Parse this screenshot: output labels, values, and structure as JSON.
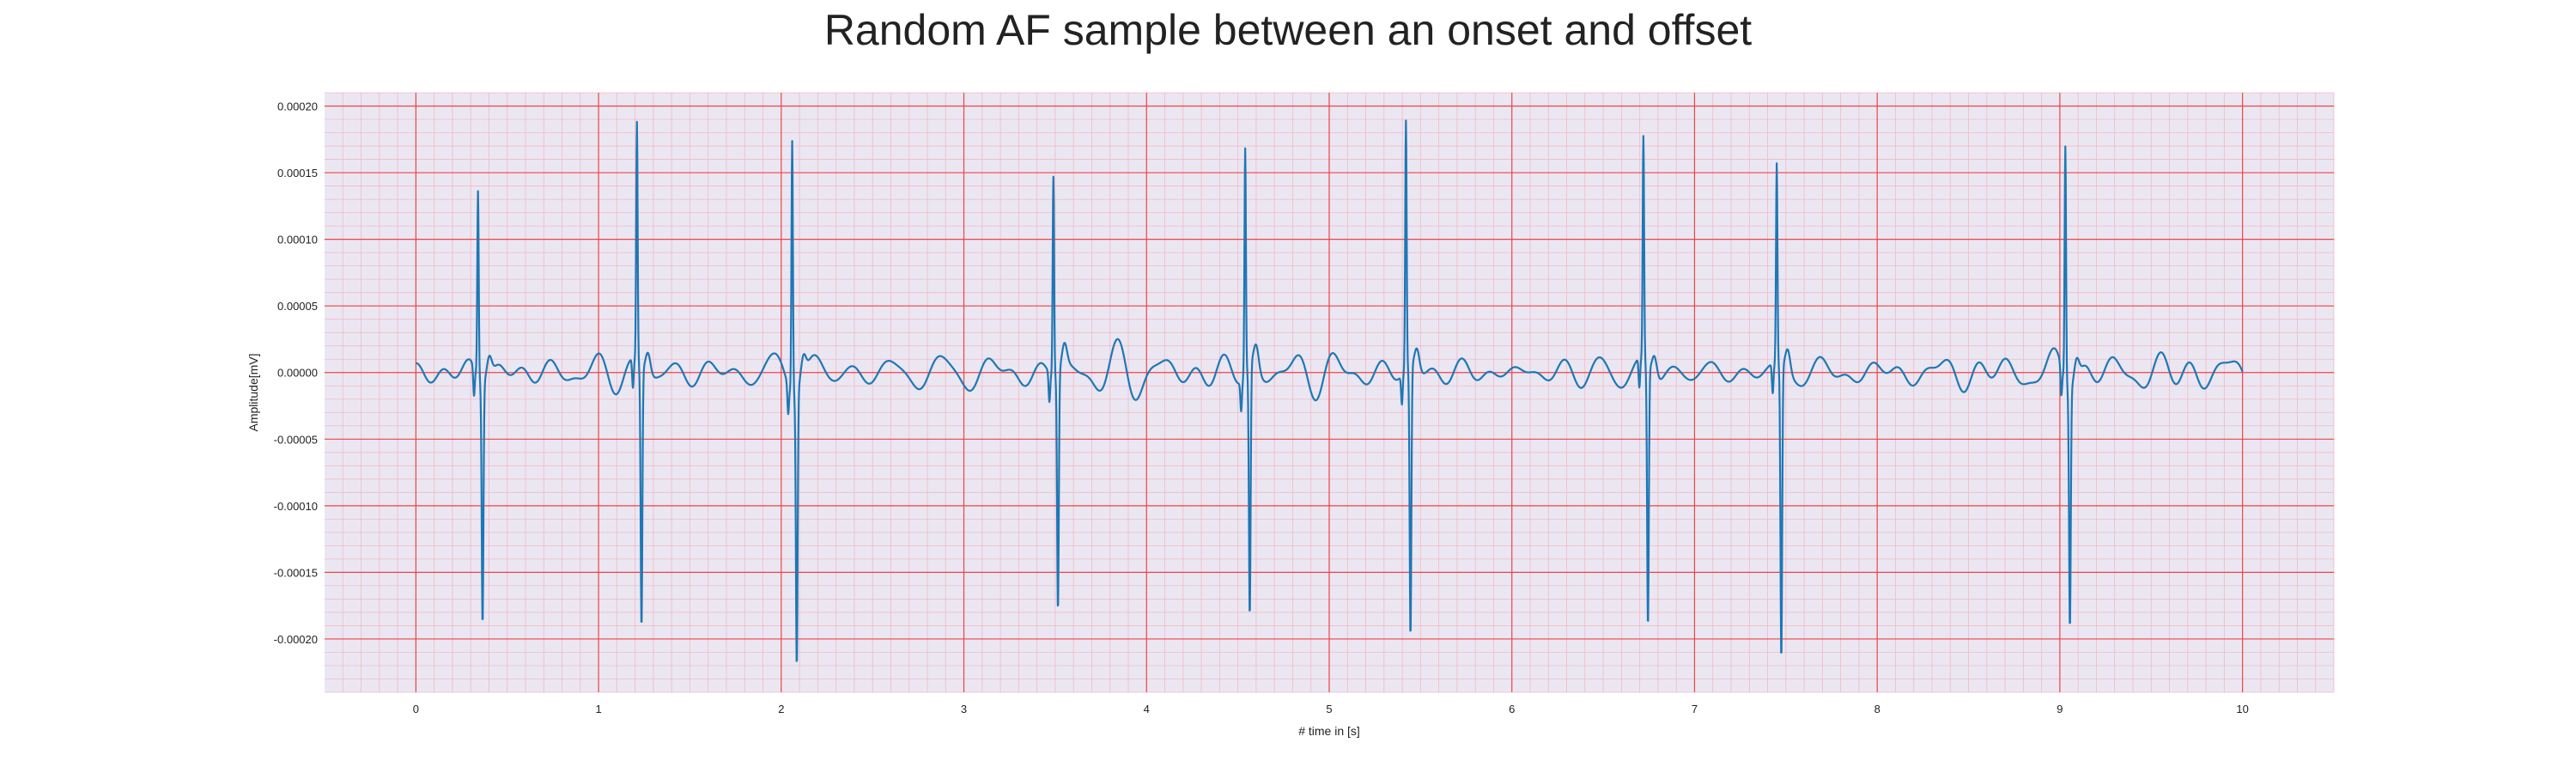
{
  "chart_data": {
    "type": "line",
    "title": "Random AF sample between an onset and offset",
    "xlabel": "# time in [s]",
    "ylabel": "Amplitude[mV]",
    "xlim": [
      -0.5,
      10.5
    ],
    "ylim": [
      -0.00024,
      0.00021
    ],
    "xticks": [
      0,
      1,
      2,
      3,
      4,
      5,
      6,
      7,
      8,
      9,
      10
    ],
    "xtick_labels": [
      "0",
      "1",
      "2",
      "3",
      "4",
      "5",
      "6",
      "7",
      "8",
      "9",
      "10"
    ],
    "yticks": [
      0.0002,
      0.00015,
      0.0001,
      5e-05,
      0.0,
      -5e-05,
      -0.0001,
      -0.00015,
      -0.0002
    ],
    "ytick_labels": [
      "0.00020",
      "0.00015",
      "0.00010",
      "0.00005",
      "0.00000",
      "-0.00005",
      "-0.00010",
      "-0.00015",
      "-0.00020"
    ],
    "grid": true,
    "colors": {
      "background": "#eae7f2",
      "major_grid": "#ee4444",
      "minor_grid": "#f3b8c6",
      "line": "#1f77b4"
    },
    "series": [
      {
        "beats": [
          {
            "t": 0.34,
            "peak": 0.00014,
            "trough": -0.00018
          },
          {
            "t": 1.21,
            "peak": 0.00018,
            "trough": -0.000195
          },
          {
            "t": 2.06,
            "peak": 0.00019,
            "trough": -0.000205
          },
          {
            "t": 3.49,
            "peak": 0.00015,
            "trough": -0.000178
          },
          {
            "t": 4.54,
            "peak": 0.00017,
            "trough": -0.000188
          },
          {
            "t": 5.42,
            "peak": 0.000187,
            "trough": -0.000203
          },
          {
            "t": 6.72,
            "peak": 0.000168,
            "trough": -0.000195
          },
          {
            "t": 7.45,
            "peak": 0.000151,
            "trough": -0.00022
          },
          {
            "t": 9.03,
            "peak": 0.000177,
            "trough": -0.000178
          }
        ],
        "x_start": 0,
        "x_end": 10
      }
    ]
  }
}
